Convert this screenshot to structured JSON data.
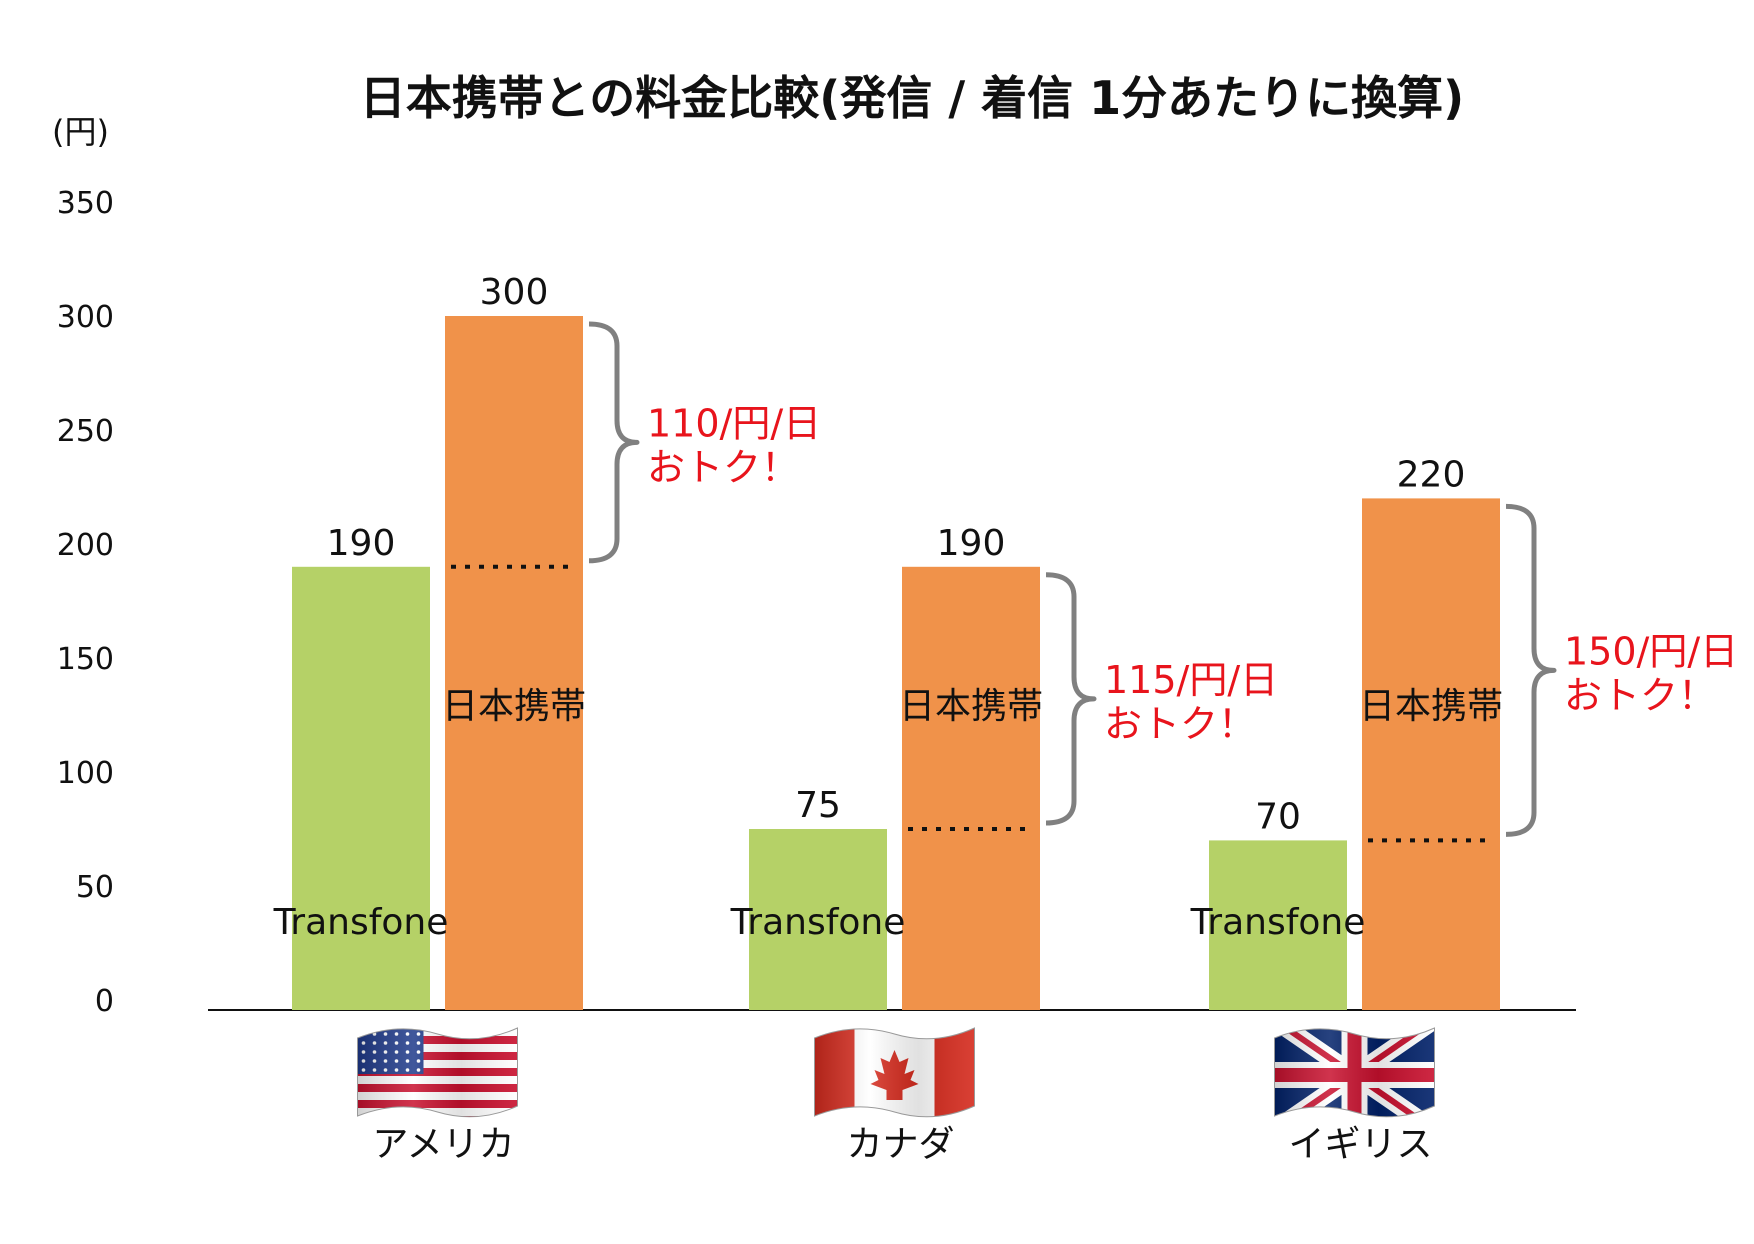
{
  "chart_data": {
    "type": "bar",
    "title": "日本携帯との料金比較(発信 / 着信 1分あたりに換算)",
    "y_unit": "(円)",
    "ylim": [
      0,
      350
    ],
    "yticks": [
      0,
      50,
      100,
      150,
      200,
      250,
      300,
      350
    ],
    "grid": false,
    "categories": [
      "アメリカ",
      "カナダ",
      "イギリス"
    ],
    "category_flags": [
      "us-flag-icon",
      "canada-flag-icon",
      "uk-flag-icon"
    ],
    "series": [
      {
        "name": "Transfone",
        "values": [
          190,
          75,
          70
        ],
        "color": "#b5d167"
      },
      {
        "name": "日本携帯",
        "values": [
          300,
          190,
          220
        ],
        "color": "#f0924a"
      }
    ],
    "annotations": [
      {
        "line1": "110/円/日",
        "line2": "おトク！"
      },
      {
        "line1": "115/円/日",
        "line2": "おトク！"
      },
      {
        "line1": "150/円/日",
        "line2": "おトク！"
      }
    ],
    "annotation_color": "#e8141c",
    "bracket_color": "#808080"
  }
}
